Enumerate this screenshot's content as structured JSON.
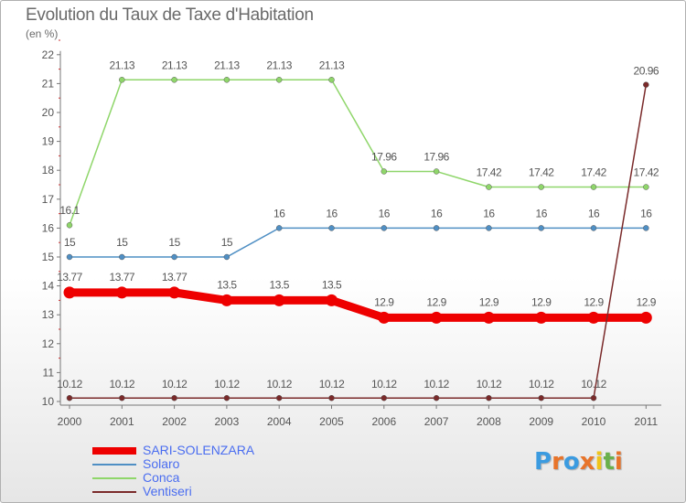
{
  "title": "Evolution du Taux de Taxe d'Habitation",
  "subtitle": "(en %)",
  "logo": {
    "text": "Proxiti",
    "letters": [
      "P",
      "r",
      "o",
      "x",
      "i",
      "t",
      "i"
    ],
    "colors": [
      "#3b9be0",
      "#e8742a",
      "#3b9be0",
      "#e8742a",
      "#f0c419",
      "#6ab04c",
      "#e8742a"
    ]
  },
  "chart_data": {
    "type": "line",
    "x": [
      "2000",
      "2001",
      "2002",
      "2003",
      "2004",
      "2005",
      "2006",
      "2007",
      "2008",
      "2009",
      "2010",
      "2011"
    ],
    "ylim": [
      10,
      22
    ],
    "yticks": [
      "10",
      "11",
      "12",
      "13",
      "14",
      "15",
      "16",
      "17",
      "18",
      "19",
      "20",
      "21",
      "22"
    ],
    "grid": false,
    "legend_position": "bottom-left",
    "series": [
      {
        "name": "SARI-SOLENZARA",
        "color": "#ee0000",
        "values": [
          13.77,
          13.77,
          13.77,
          13.5,
          13.5,
          13.5,
          12.9,
          12.9,
          12.9,
          12.9,
          12.9,
          12.9
        ],
        "labels": [
          "13.77",
          "13.77",
          "13.77",
          "13.5",
          "13.5",
          "13.5",
          "12.9",
          "12.9",
          "12.9",
          "12.9",
          "12.9",
          "12.9"
        ]
      },
      {
        "name": "Solaro",
        "color": "#4f8fc4",
        "values": [
          15,
          15,
          15,
          15,
          16,
          16,
          16,
          16,
          16,
          16,
          16,
          16
        ],
        "labels": [
          "15",
          "15",
          "15",
          "15",
          "16",
          "16",
          "16",
          "16",
          "16",
          "16",
          "16",
          "16"
        ]
      },
      {
        "name": "Conca",
        "color": "#8fd66a",
        "values": [
          16.1,
          21.13,
          21.13,
          21.13,
          21.13,
          21.13,
          17.96,
          17.96,
          17.42,
          17.42,
          17.42,
          17.42
        ],
        "labels": [
          "16.1",
          "21.13",
          "21.13",
          "21.13",
          "21.13",
          "21.13",
          "17.96",
          "17.96",
          "17.42",
          "17.42",
          "17.42",
          "17.42"
        ]
      },
      {
        "name": "Ventiseri",
        "color": "#7a2a2a",
        "values": [
          10.12,
          10.12,
          10.12,
          10.12,
          10.12,
          10.12,
          10.12,
          10.12,
          10.12,
          10.12,
          10.12,
          20.96
        ],
        "labels": [
          "10.12",
          "10.12",
          "10.12",
          "10.12",
          "10.12",
          "10.12",
          "10.12",
          "10.12",
          "10.12",
          "10.12",
          "10.12",
          "20.96"
        ]
      }
    ]
  }
}
